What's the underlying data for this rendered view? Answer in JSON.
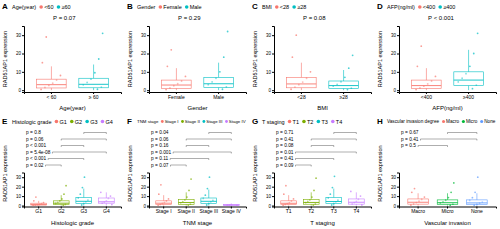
{
  "chart_data": [
    {
      "type": "box",
      "title": "A",
      "legend_title": "Age(year)",
      "legend_labels": [
        "<60",
        "≥60"
      ],
      "categories": [
        "< 60",
        "≥ 60"
      ],
      "x_label": "Age(year)",
      "y_label": "RAD51AP1 expression",
      "colors": [
        "#F8766D",
        "#00BFC4"
      ],
      "ylim": [
        -1,
        35
      ],
      "yticks": [
        0,
        10,
        20,
        30
      ],
      "annotation": "P = 0.07",
      "boxes": [
        {
          "min": 0,
          "q1": 1.2,
          "median": 3,
          "q3": 6,
          "max": 13,
          "points": [
            0.4,
            1.5,
            2.6,
            3.8,
            5.5,
            8,
            15,
            29
          ]
        },
        {
          "min": 0,
          "q1": 1.3,
          "median": 3.2,
          "q3": 6.5,
          "max": 14,
          "points": [
            0.5,
            1.7,
            2.9,
            4.2,
            6,
            9.5,
            17,
            31
          ]
        }
      ]
    },
    {
      "type": "box",
      "title": "B",
      "legend_title": "Gender",
      "legend_labels": [
        "Female",
        "Male"
      ],
      "categories": [
        "Female",
        "Male"
      ],
      "x_label": "Gender",
      "y_label": "RAD51AP1 expression",
      "colors": [
        "#F8766D",
        "#00BFC4"
      ],
      "ylim": [
        -1,
        35
      ],
      "yticks": [
        0,
        10,
        20,
        30
      ],
      "annotation": "P = 0.29",
      "boxes": [
        {
          "min": 0,
          "q1": 1,
          "median": 2.8,
          "q3": 5.5,
          "max": 12,
          "points": [
            0.3,
            1.2,
            2.4,
            3.5,
            5,
            7.5,
            13,
            22
          ]
        },
        {
          "min": 0,
          "q1": 1.4,
          "median": 3.5,
          "q3": 7,
          "max": 15,
          "points": [
            0.5,
            1.8,
            3,
            4.5,
            6.5,
            10,
            18,
            32
          ]
        }
      ]
    },
    {
      "type": "box",
      "title": "C",
      "legend_title": "BMI",
      "legend_labels": [
        "<28",
        "≥28"
      ],
      "categories": [
        "<28",
        "≥28"
      ],
      "x_label": "BMI",
      "y_label": "RAD51AP1 expression",
      "colors": [
        "#F8766D",
        "#00BFC4"
      ],
      "ylim": [
        -1,
        35
      ],
      "yticks": [
        0,
        10,
        20,
        30
      ],
      "annotation": "P = 0.08",
      "boxes": [
        {
          "min": 0,
          "q1": 1.3,
          "median": 3.4,
          "q3": 7,
          "max": 15,
          "points": [
            0.5,
            1.7,
            3,
            4.4,
            6.5,
            10,
            18,
            30
          ]
        },
        {
          "min": 0,
          "q1": 1,
          "median": 2.5,
          "q3": 5,
          "max": 11,
          "points": [
            0.3,
            1.1,
            2.2,
            3.2,
            4.6,
            7,
            12,
            19
          ]
        }
      ]
    },
    {
      "type": "box",
      "title": "D",
      "legend_title": "AFP(ng/ml)",
      "legend_labels": [
        "<400",
        "≥400"
      ],
      "categories": [
        "<400",
        "≥400"
      ],
      "x_label": "AFP(ng/ml)",
      "y_label": "RAD51AP1 expression",
      "colors": [
        "#F8766D",
        "#00BFC4"
      ],
      "ylim": [
        -1,
        35
      ],
      "yticks": [
        0,
        10,
        20,
        30
      ],
      "annotation": "P < 0.001",
      "boxes": [
        {
          "min": 0,
          "q1": 1,
          "median": 2.5,
          "q3": 5.5,
          "max": 12,
          "points": [
            0.3,
            1.2,
            2.2,
            3.4,
            5,
            7.5,
            13,
            24
          ]
        },
        {
          "min": 0,
          "q1": 2.5,
          "median": 5.5,
          "q3": 10,
          "max": 22,
          "points": [
            0.8,
            2.8,
            4.5,
            6.5,
            9,
            13,
            20,
            31
          ]
        }
      ]
    },
    {
      "type": "box",
      "title": "E",
      "legend_title": "Histologic grade",
      "legend_labels": [
        "G1",
        "G2",
        "G3",
        "G4"
      ],
      "categories": [
        "G1",
        "G2",
        "G3",
        "G4"
      ],
      "x_label": "Histologic grade",
      "y_label": "RAD51AP1 expression",
      "colors": [
        "#F8766D",
        "#7CAE00",
        "#00BFC4",
        "#C77CFF"
      ],
      "ylim": [
        -1,
        35
      ],
      "yticks": [
        0,
        10,
        20,
        30
      ],
      "comparisons": [
        {
          "groups": [
            2,
            3
          ],
          "label": "p = 0.8"
        },
        {
          "groups": [
            1,
            3
          ],
          "label": "p = 0.06"
        },
        {
          "groups": [
            1,
            2
          ],
          "label": "p < 0.001"
        },
        {
          "groups": [
            0,
            3
          ],
          "label": "p = 5.4e-08"
        },
        {
          "groups": [
            0,
            2
          ],
          "label": "p < 0.001"
        },
        {
          "groups": [
            0,
            1
          ],
          "label": "p = 0.02"
        }
      ],
      "boxes": [
        {
          "min": 0,
          "q1": 0.5,
          "median": 1.2,
          "q3": 2.5,
          "max": 5,
          "points": [
            0.1,
            0.5,
            0.9,
            1.3,
            2,
            3,
            5,
            9
          ]
        },
        {
          "min": 0,
          "q1": 1,
          "median": 2.5,
          "q3": 5,
          "max": 11,
          "points": [
            0.3,
            1.2,
            2.2,
            3.3,
            4.8,
            7,
            12,
            21
          ]
        },
        {
          "min": 0,
          "q1": 2,
          "median": 4.5,
          "q3": 8.5,
          "max": 18,
          "points": [
            0.6,
            2.4,
            4,
            5.8,
            8,
            12,
            19,
            30
          ]
        },
        {
          "min": 0,
          "q1": 2.5,
          "median": 4,
          "q3": 8,
          "max": 14,
          "points": [
            1,
            2.6,
            3.6,
            5,
            7.5,
            10,
            14
          ]
        }
      ]
    },
    {
      "type": "box",
      "title": "F",
      "legend_title": "TNM stage",
      "legend_labels": [
        "Stage I",
        "Stage II",
        "Stage III",
        "Stage IV"
      ],
      "categories": [
        "Stage I",
        "Stage II",
        "Stage III",
        "Stage IV"
      ],
      "x_label": "TNM stage",
      "y_label": "RAD51AP1 expression",
      "colors": [
        "#F8766D",
        "#7CAE00",
        "#00BFC4",
        "#C77CFF"
      ],
      "ylim": [
        -1,
        35
      ],
      "yticks": [
        0,
        10,
        20,
        30
      ],
      "comparisons": [
        {
          "groups": [
            2,
            3
          ],
          "label": "p = 0.04"
        },
        {
          "groups": [
            1,
            3
          ],
          "label": "p = 0.06"
        },
        {
          "groups": [
            1,
            2
          ],
          "label": "p = 0.16"
        },
        {
          "groups": [
            0,
            3
          ],
          "label": "p = 0.001"
        },
        {
          "groups": [
            0,
            2
          ],
          "label": "p = 0.11"
        },
        {
          "groups": [
            0,
            1
          ],
          "label": "p = 0.07"
        }
      ],
      "boxes": [
        {
          "min": 0,
          "q1": 1,
          "median": 2.5,
          "q3": 5,
          "max": 11,
          "points": [
            0.3,
            1.2,
            2.2,
            3.3,
            4.8,
            7,
            12,
            22
          ]
        },
        {
          "min": 0,
          "q1": 1.3,
          "median": 3.2,
          "q3": 6.5,
          "max": 14,
          "points": [
            0.5,
            1.6,
            2.9,
            4.2,
            6,
            9,
            16,
            28
          ]
        },
        {
          "min": 0,
          "q1": 2,
          "median": 4.5,
          "q3": 8,
          "max": 17,
          "points": [
            0.6,
            2.3,
            3.9,
            5.5,
            7.6,
            11,
            18,
            30
          ]
        },
        {
          "min": 0,
          "q1": 0.3,
          "median": 0.6,
          "q3": 1,
          "max": 1.5,
          "points": [
            0.2,
            0.5,
            0.7,
            1.2
          ]
        }
      ]
    },
    {
      "type": "box",
      "title": "G",
      "legend_title": "T staging",
      "legend_labels": [
        "T1",
        "T2",
        "T3",
        "T4"
      ],
      "categories": [
        "T1",
        "T2",
        "T3",
        "T4"
      ],
      "x_label": "T staging",
      "y_label": "RAD51AP1 expression",
      "colors": [
        "#F8766D",
        "#7CAE00",
        "#00BFC4",
        "#C77CFF"
      ],
      "ylim": [
        -1,
        35
      ],
      "yticks": [
        0,
        10,
        20,
        30
      ],
      "comparisons": [
        {
          "groups": [
            2,
            3
          ],
          "label": "p = 0.71"
        },
        {
          "groups": [
            1,
            3
          ],
          "label": "p = 0.41"
        },
        {
          "groups": [
            1,
            2
          ],
          "label": "p = 0.08"
        },
        {
          "groups": [
            0,
            3
          ],
          "label": "p = 0.01"
        },
        {
          "groups": [
            0,
            2
          ],
          "label": "p = 0.41"
        },
        {
          "groups": [
            0,
            1
          ],
          "label": "p = 0.09"
        }
      ],
      "boxes": [
        {
          "min": 0,
          "q1": 1,
          "median": 2.4,
          "q3": 5,
          "max": 11,
          "points": [
            0.3,
            1.2,
            2.1,
            3.2,
            4.7,
            7,
            12,
            21
          ]
        },
        {
          "min": 0,
          "q1": 1.4,
          "median": 3.3,
          "q3": 6.5,
          "max": 14,
          "points": [
            0.5,
            1.7,
            3,
            4.3,
            6,
            9,
            16,
            29
          ]
        },
        {
          "min": 0,
          "q1": 2,
          "median": 4.3,
          "q3": 8.5,
          "max": 18,
          "points": [
            0.6,
            2.3,
            3.9,
            5.6,
            8,
            12,
            19,
            31
          ]
        },
        {
          "min": 0,
          "q1": 1.5,
          "median": 3.5,
          "q3": 7,
          "max": 14,
          "points": [
            0.7,
            1.8,
            3.2,
            4.5,
            6.5,
            10,
            15
          ]
        }
      ]
    },
    {
      "type": "box",
      "title": "H",
      "legend_title": "Vascular invasion degree",
      "legend_labels": [
        "Macro",
        "Micro",
        "None"
      ],
      "categories": [
        "Macro",
        "Micro",
        "None"
      ],
      "x_label": "Vascular invasion",
      "y_label": "RAD51AP1 expression",
      "colors": [
        "#F8766D",
        "#00BA38",
        "#619CFF"
      ],
      "ylim": [
        -1,
        35
      ],
      "yticks": [
        0,
        10,
        20,
        30
      ],
      "comparisons": [
        {
          "groups": [
            1,
            2
          ],
          "label": "p = 0.67"
        },
        {
          "groups": [
            0,
            2
          ],
          "label": "p = 0.41"
        },
        {
          "groups": [
            0,
            1
          ],
          "label": "p = 0.5"
        }
      ],
      "boxes": [
        {
          "min": 0,
          "q1": 1.5,
          "median": 3.5,
          "q3": 7,
          "max": 13,
          "points": [
            0.6,
            1.8,
            3.2,
            4.6,
            6.5,
            9,
            14,
            18
          ]
        },
        {
          "min": 0,
          "q1": 1.2,
          "median": 3,
          "q3": 6,
          "max": 13,
          "points": [
            0.4,
            1.5,
            2.7,
            3.9,
            5.6,
            8.5,
            14,
            24
          ]
        },
        {
          "min": 0,
          "q1": 1.1,
          "median": 2.8,
          "q3": 6,
          "max": 13,
          "points": [
            0.4,
            1.4,
            2.5,
            3.7,
            5.4,
            8.3,
            14,
            30
          ]
        }
      ]
    }
  ]
}
